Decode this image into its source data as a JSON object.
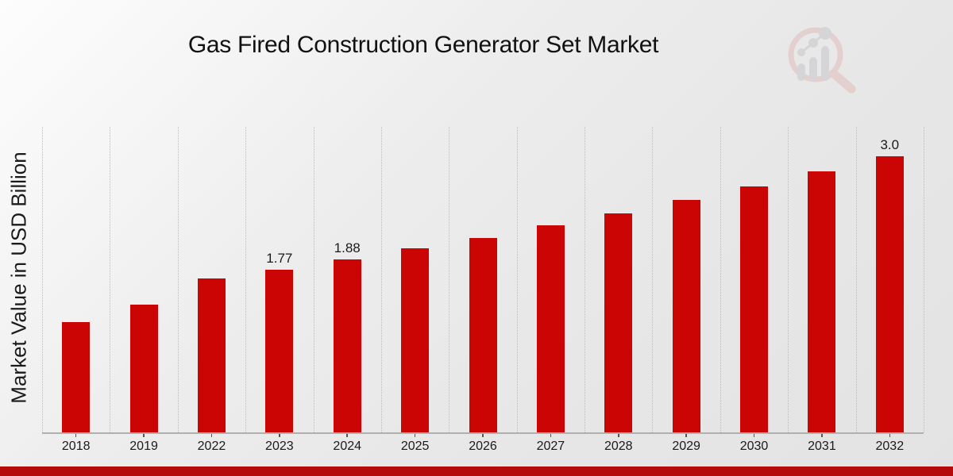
{
  "title": "Gas Fired Construction Generator Set Market",
  "ylabel": "Market Value in USD Billion",
  "logo": {
    "icon": "magnifier-bar-chart-logo"
  },
  "colors": {
    "bar": "#cb0404",
    "bottom_strip": "#b50b0b",
    "text": "#1a1a1a",
    "gridline": "#bdbdbd",
    "axis": "#b0b0b0",
    "logo_ring_pink": "#e2bcbc",
    "logo_gray": "#c7c7cb"
  },
  "chart_data": {
    "type": "bar",
    "title": "Gas Fired Construction Generator Set Market",
    "xlabel": "",
    "ylabel": "Market Value in USD Billion",
    "categories": [
      "2018",
      "2019",
      "2022",
      "2023",
      "2024",
      "2025",
      "2026",
      "2027",
      "2028",
      "2029",
      "2030",
      "2031",
      "2032"
    ],
    "values": [
      1.2,
      1.39,
      1.67,
      1.77,
      1.88,
      2.0,
      2.11,
      2.25,
      2.38,
      2.53,
      2.67,
      2.84,
      3.0
    ],
    "bar_labels": [
      "",
      "",
      "",
      "1.77",
      "1.88",
      "",
      "",
      "",
      "",
      "",
      "",
      "",
      "3.0"
    ],
    "ylim": [
      0,
      3.32
    ],
    "grid": "vertical-dotted",
    "legend": null
  }
}
